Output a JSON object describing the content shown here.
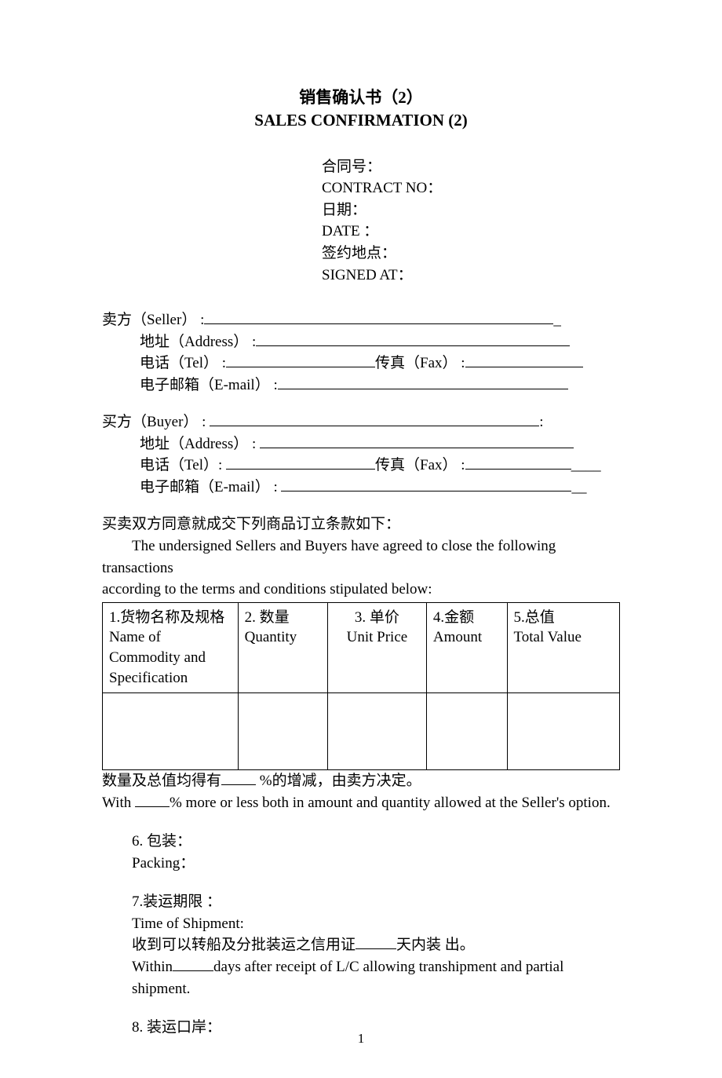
{
  "title": {
    "cn": "销售确认书（2）",
    "en": "SALES CONFIRMATION (2)"
  },
  "header_fields": {
    "contract_cn": "合同号：",
    "contract_en": "CONTRACT NO：",
    "date_cn": "日期：",
    "date_en": "DATE ：",
    "signed_cn": "签约地点：",
    "signed_en": "SIGNED AT："
  },
  "seller": {
    "label": "卖方（Seller） :",
    "address": "地址（Address） :",
    "tel": "电话（Tel） :",
    "fax": "传真（Fax） :",
    "email": "电子邮箱（E-mail） :"
  },
  "buyer": {
    "label": "买方（Buyer） :",
    "address": "地址（Address） :",
    "tel": "电话（Tel）:",
    "fax": "传真（Fax） :",
    "email": "电子邮箱（E-mail） :"
  },
  "intro": {
    "cn": "买卖双方同意就成交下列商品订立条款如下：",
    "en1": "The undersigned Sellers and Buyers have agreed to close the following transactions",
    "en2": "according to the terms and conditions stipulated below:"
  },
  "table": {
    "columns": [
      {
        "cn": "1.货物名称及规格",
        "en": "Name of Commodity and Specification",
        "width": "27%"
      },
      {
        "cn": "2. 数量",
        "en": "Quantity",
        "width": "17%"
      },
      {
        "cn": "3. 单价",
        "en": "Unit Price",
        "width": "19%",
        "align": "center"
      },
      {
        "cn": "4.金额",
        "en": "Amount",
        "width": "15%"
      },
      {
        "cn": "5.总值",
        "en": "Total Value",
        "width": "22%"
      }
    ]
  },
  "allowance": {
    "cn_pre": "数量及总值均得有",
    "cn_post": " %的增减，由卖方决定。",
    "en_pre": "With ",
    "en_post": "% more or less both in amount and quantity allowed at the Seller's option."
  },
  "clauses": {
    "c6": {
      "cn": "6. 包装：",
      "en": "Packing："
    },
    "c7": {
      "cn": "7.装运期限 ：",
      "en": "Time of Shipment:",
      "detail_cn_pre": "收到可以转船及分批装运之信用证",
      "detail_cn_post": "天内装  出。",
      "detail_en_pre": "Within",
      "detail_en_post": "days after receipt of L/C allowing transhipment and partial shipment."
    },
    "c8": {
      "cn": "8. 装运口岸："
    }
  },
  "underline_widths": {
    "seller_name": 445,
    "address": 400,
    "tel": 190,
    "fax": 150,
    "email": 370,
    "buyer_name": 420,
    "buyer_fax": 135
  },
  "page_number": "1"
}
